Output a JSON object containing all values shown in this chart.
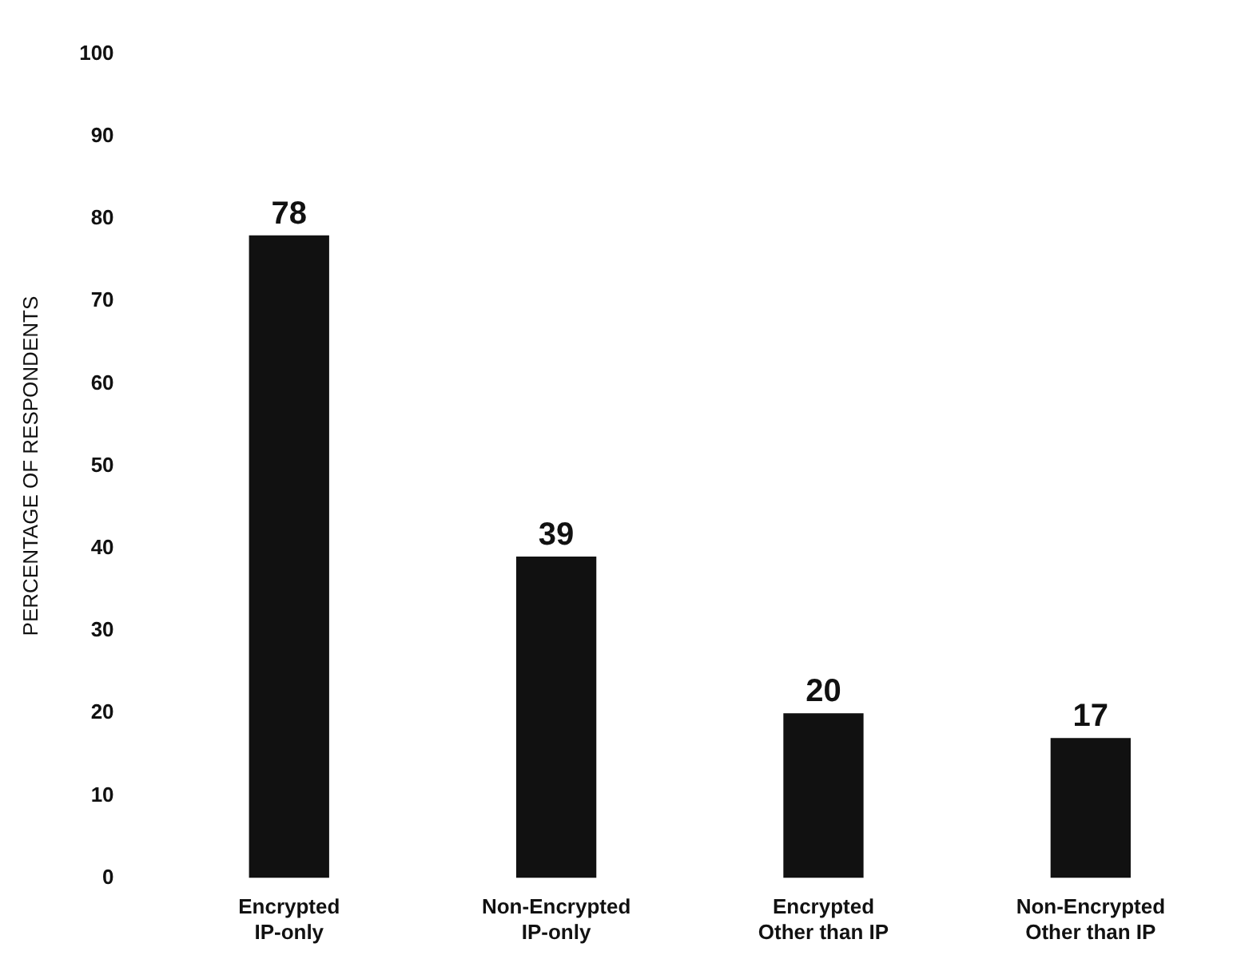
{
  "chart_data": {
    "type": "bar",
    "ylabel": "PERCENTAGE OF RESPONDENTS",
    "categories": [
      "Encrypted\nIP-only",
      "Non-Encrypted\nIP-only",
      "Encrypted\nOther than IP",
      "Non-Encrypted\nOther than IP"
    ],
    "values": [
      78,
      39,
      20,
      17
    ],
    "color": "#111111",
    "ylim": [
      0,
      100
    ],
    "yticks": [
      0,
      10,
      20,
      30,
      40,
      50,
      60,
      70,
      80,
      90,
      100
    ],
    "grid": false,
    "data_labels": true
  }
}
